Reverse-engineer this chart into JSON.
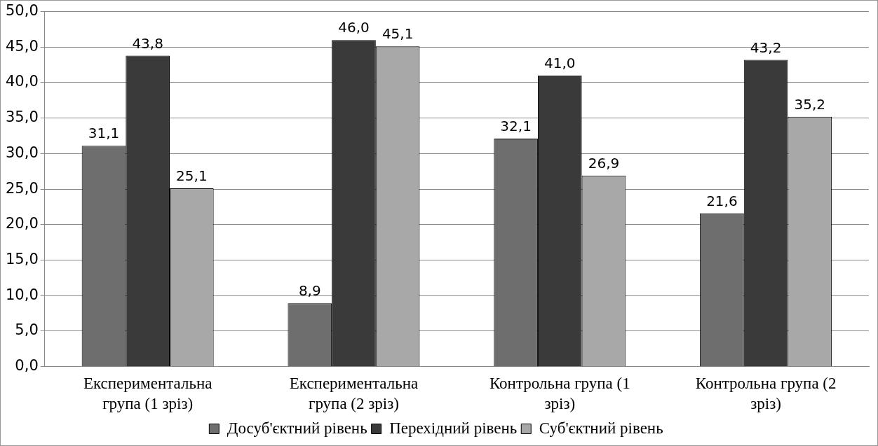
{
  "chart_data": {
    "type": "bar",
    "categories": [
      "Експериментальна група (1 зріз)",
      "Експериментальна група (2 зріз)",
      "Контрольна група (1 зріз)",
      "Контрольна група (2 зріз)"
    ],
    "series": [
      {
        "name": "Досуб'єктний рівень",
        "color": "#6e6e6e",
        "values": [
          31.1,
          8.9,
          32.1,
          21.6
        ],
        "value_labels": [
          "31,1",
          "8,9",
          "32,1",
          "21,6"
        ]
      },
      {
        "name": "Перехідний рівень",
        "color": "#3a3a3a",
        "values": [
          43.8,
          46.0,
          41.0,
          43.2
        ],
        "value_labels": [
          "43,8",
          "46,0",
          "41,0",
          "43,2"
        ]
      },
      {
        "name": "Суб'єктний рівень",
        "color": "#a8a8a8",
        "values": [
          25.1,
          45.1,
          26.9,
          35.2
        ],
        "value_labels": [
          "25,1",
          "45,1",
          "26,9",
          "35,2"
        ]
      }
    ],
    "ylim": [
      0,
      50
    ],
    "yticks": [
      {
        "value": 0,
        "label": "0,0"
      },
      {
        "value": 5,
        "label": "5,0"
      },
      {
        "value": 10,
        "label": "10,0"
      },
      {
        "value": 15,
        "label": "15,0"
      },
      {
        "value": 20,
        "label": "20,0"
      },
      {
        "value": 25,
        "label": "25,0"
      },
      {
        "value": 30,
        "label": "30,0"
      },
      {
        "value": 35,
        "label": "35,0"
      },
      {
        "value": 40,
        "label": "40,0"
      },
      {
        "value": 45,
        "label": "45,0"
      },
      {
        "value": 50,
        "label": "50,0"
      }
    ],
    "grid": "y",
    "legend": "bottom"
  }
}
